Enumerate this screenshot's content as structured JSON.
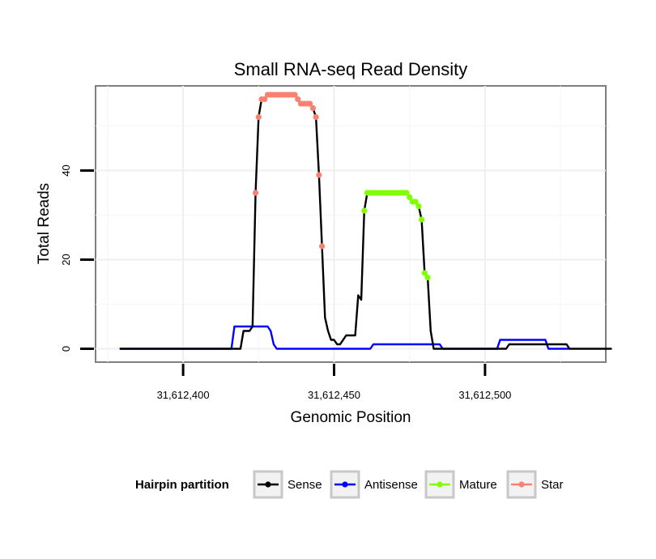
{
  "chart_data": {
    "type": "line",
    "title": "Small RNA-seq Read Density",
    "xlabel": "Genomic Position",
    "ylabel": "Total Reads",
    "xlim": [
      31612371,
      31612540
    ],
    "ylim": [
      -3,
      59
    ],
    "x_ticks": [
      {
        "value": 31612400,
        "label": "31,612,400"
      },
      {
        "value": 31612450,
        "label": "31,612,450"
      },
      {
        "value": 31612500,
        "label": "31,612,500"
      }
    ],
    "y_ticks": [
      {
        "value": 0,
        "label": "0"
      },
      {
        "value": 20,
        "label": "20"
      },
      {
        "value": 40,
        "label": "40"
      }
    ],
    "grid": true,
    "legend": {
      "title": "Hairpin partition",
      "position": "bottom",
      "entries": [
        {
          "name": "Sense",
          "color": "#000000"
        },
        {
          "name": "Antisense",
          "color": "#0000ff"
        },
        {
          "name": "Mature",
          "color": "#7fff00"
        },
        {
          "name": "Star",
          "color": "#fa8072"
        }
      ]
    },
    "series": [
      {
        "name": "Sense",
        "color": "#000000",
        "points": [
          [
            31612379,
            0
          ],
          [
            31612419,
            0
          ],
          [
            31612420,
            4
          ],
          [
            31612422,
            4
          ],
          [
            31612423,
            5
          ],
          [
            31612424,
            35
          ],
          [
            31612425,
            52
          ],
          [
            31612426,
            56
          ],
          [
            31612427,
            56
          ],
          [
            31612428,
            57
          ],
          [
            31612437,
            57
          ],
          [
            31612438,
            56
          ],
          [
            31612439,
            55
          ],
          [
            31612442,
            55
          ],
          [
            31612443,
            54
          ],
          [
            31612444,
            52
          ],
          [
            31612445,
            39
          ],
          [
            31612446,
            23
          ],
          [
            31612447,
            7
          ],
          [
            31612448,
            4
          ],
          [
            31612449,
            2
          ],
          [
            31612450,
            2
          ],
          [
            31612451,
            1
          ],
          [
            31612452,
            1
          ],
          [
            31612453,
            2
          ],
          [
            31612454,
            3
          ],
          [
            31612456,
            3
          ],
          [
            31612457,
            3
          ],
          [
            31612458,
            12
          ],
          [
            31612459,
            11
          ],
          [
            31612460,
            31
          ],
          [
            31612461,
            35
          ],
          [
            31612474,
            35
          ],
          [
            31612475,
            34
          ],
          [
            31612476,
            33
          ],
          [
            31612477,
            33
          ],
          [
            31612478,
            32
          ],
          [
            31612479,
            29
          ],
          [
            31612480,
            17
          ],
          [
            31612481,
            16
          ],
          [
            31612482,
            4
          ],
          [
            31612483,
            0
          ],
          [
            31612507,
            0
          ],
          [
            31612508,
            1
          ],
          [
            31612527,
            1
          ],
          [
            31612528,
            0
          ],
          [
            31612542,
            0
          ]
        ]
      },
      {
        "name": "Antisense",
        "color": "#0000ff",
        "points": [
          [
            31612379,
            0
          ],
          [
            31612416,
            0
          ],
          [
            31612417,
            5
          ],
          [
            31612428,
            5
          ],
          [
            31612429,
            4
          ],
          [
            31612430,
            1
          ],
          [
            31612431,
            0
          ],
          [
            31612462,
            0
          ],
          [
            31612463,
            1
          ],
          [
            31612485,
            1
          ],
          [
            31612486,
            0
          ],
          [
            31612504,
            0
          ],
          [
            31612505,
            2
          ],
          [
            31612520,
            2
          ],
          [
            31612521,
            0
          ],
          [
            31612528,
            0
          ]
        ]
      },
      {
        "name": "Mature",
        "color": "#7fff00",
        "points": [
          [
            31612460,
            31
          ],
          [
            31612461,
            35
          ],
          [
            31612462,
            35
          ],
          [
            31612463,
            35
          ],
          [
            31612464,
            35
          ],
          [
            31612465,
            35
          ],
          [
            31612466,
            35
          ],
          [
            31612467,
            35
          ],
          [
            31612468,
            35
          ],
          [
            31612469,
            35
          ],
          [
            31612470,
            35
          ],
          [
            31612471,
            35
          ],
          [
            31612472,
            35
          ],
          [
            31612473,
            35
          ],
          [
            31612474,
            35
          ],
          [
            31612475,
            34
          ],
          [
            31612476,
            33
          ],
          [
            31612477,
            33
          ],
          [
            31612478,
            32
          ],
          [
            31612479,
            29
          ],
          [
            31612480,
            17
          ],
          [
            31612481,
            16
          ]
        ]
      },
      {
        "name": "Star",
        "color": "#fa8072",
        "points": [
          [
            31612424,
            35
          ],
          [
            31612425,
            52
          ],
          [
            31612426,
            56
          ],
          [
            31612427,
            56
          ],
          [
            31612428,
            57
          ],
          [
            31612429,
            57
          ],
          [
            31612430,
            57
          ],
          [
            31612431,
            57
          ],
          [
            31612432,
            57
          ],
          [
            31612433,
            57
          ],
          [
            31612434,
            57
          ],
          [
            31612435,
            57
          ],
          [
            31612436,
            57
          ],
          [
            31612437,
            57
          ],
          [
            31612438,
            56
          ],
          [
            31612439,
            55
          ],
          [
            31612440,
            55
          ],
          [
            31612441,
            55
          ],
          [
            31612442,
            55
          ],
          [
            31612443,
            54
          ],
          [
            31612444,
            52
          ],
          [
            31612445,
            39
          ],
          [
            31612446,
            23
          ]
        ]
      }
    ],
    "point_series": [
      "Mature",
      "Star"
    ]
  }
}
